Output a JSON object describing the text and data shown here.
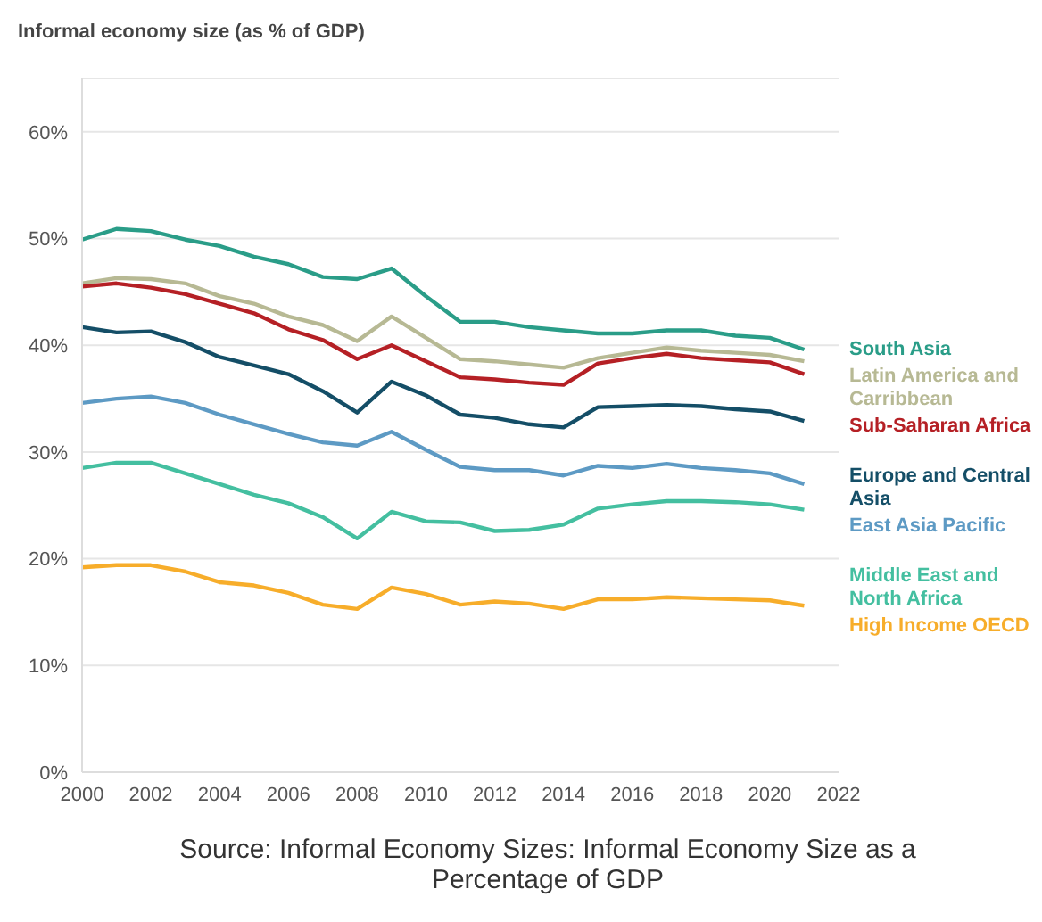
{
  "chart_data": {
    "type": "line",
    "title": "Informal economy size (as % of GDP)",
    "annotations": [
      "Source: Informal Economy Sizes: Informal Economy Size as a Percentage of GDP"
    ],
    "x": [
      2000,
      2001,
      2002,
      2003,
      2004,
      2005,
      2006,
      2007,
      2008,
      2009,
      2010,
      2011,
      2012,
      2013,
      2014,
      2015,
      2016,
      2017,
      2018,
      2019,
      2020,
      2021
    ],
    "series": [
      {
        "name": "South Asia",
        "color": "#2a9d88",
        "values": [
          49.9,
          50.9,
          50.7,
          49.9,
          49.3,
          48.3,
          47.6,
          46.4,
          46.2,
          47.2,
          44.6,
          42.2,
          42.2,
          41.7,
          41.4,
          41.1,
          41.1,
          41.4,
          41.4,
          40.9,
          40.7,
          39.6
        ]
      },
      {
        "name": "Latin America and Carribbean",
        "color": "#b7b994",
        "values": [
          45.8,
          46.3,
          46.2,
          45.8,
          44.6,
          43.9,
          42.7,
          41.9,
          40.4,
          42.7,
          40.7,
          38.7,
          38.5,
          38.2,
          37.9,
          38.8,
          39.3,
          39.8,
          39.5,
          39.3,
          39.1,
          38.5
        ]
      },
      {
        "name": "Sub-Saharan Africa",
        "color": "#b52025",
        "values": [
          45.5,
          45.8,
          45.4,
          44.8,
          43.9,
          43.0,
          41.5,
          40.5,
          38.7,
          40.0,
          38.5,
          37.0,
          36.8,
          36.5,
          36.3,
          38.3,
          38.8,
          39.2,
          38.8,
          38.6,
          38.4,
          37.3
        ]
      },
      {
        "name": "Europe and Central Asia",
        "color": "#144e67",
        "values": [
          41.7,
          41.2,
          41.3,
          40.3,
          38.9,
          38.1,
          37.3,
          35.7,
          33.7,
          36.6,
          35.3,
          33.5,
          33.2,
          32.6,
          32.3,
          34.2,
          34.3,
          34.4,
          34.3,
          34.0,
          33.8,
          32.9
        ]
      },
      {
        "name": "East Asia Pacific",
        "color": "#5d9ac4",
        "values": [
          34.6,
          35.0,
          35.2,
          34.6,
          33.5,
          32.6,
          31.7,
          30.9,
          30.6,
          31.9,
          30.2,
          28.6,
          28.3,
          28.3,
          27.8,
          28.7,
          28.5,
          28.9,
          28.5,
          28.3,
          28.0,
          27.0
        ]
      },
      {
        "name": "Middle East and North Africa",
        "color": "#44bfa0",
        "values": [
          28.5,
          29.0,
          29.0,
          28.0,
          27.0,
          26.0,
          25.2,
          23.9,
          21.9,
          24.4,
          23.5,
          23.4,
          22.6,
          22.7,
          23.2,
          24.7,
          25.1,
          25.4,
          25.4,
          25.3,
          25.1,
          24.6
        ]
      },
      {
        "name": "High Income OECD",
        "color": "#f7ad2a",
        "values": [
          19.2,
          19.4,
          19.4,
          18.8,
          17.8,
          17.5,
          16.8,
          15.7,
          15.3,
          17.3,
          16.7,
          15.7,
          16.0,
          15.8,
          15.3,
          16.2,
          16.2,
          16.4,
          16.3,
          16.2,
          16.1,
          15.6
        ]
      }
    ],
    "xlim": [
      2000,
      2022
    ],
    "xticks": [
      2000,
      2002,
      2004,
      2006,
      2008,
      2010,
      2012,
      2014,
      2016,
      2018,
      2020,
      2022
    ],
    "ylim": [
      0,
      65
    ],
    "yticks": [
      {
        "value": 0,
        "label": "0%"
      },
      {
        "value": 10,
        "label": "10%"
      },
      {
        "value": 20,
        "label": "20%"
      },
      {
        "value": 30,
        "label": "30%"
      },
      {
        "value": 40,
        "label": "40%"
      },
      {
        "value": 50,
        "label": "50%"
      },
      {
        "value": 60,
        "label": "60%"
      }
    ],
    "grid": "y",
    "legend": false,
    "marker": "none",
    "line_style": "solid"
  }
}
